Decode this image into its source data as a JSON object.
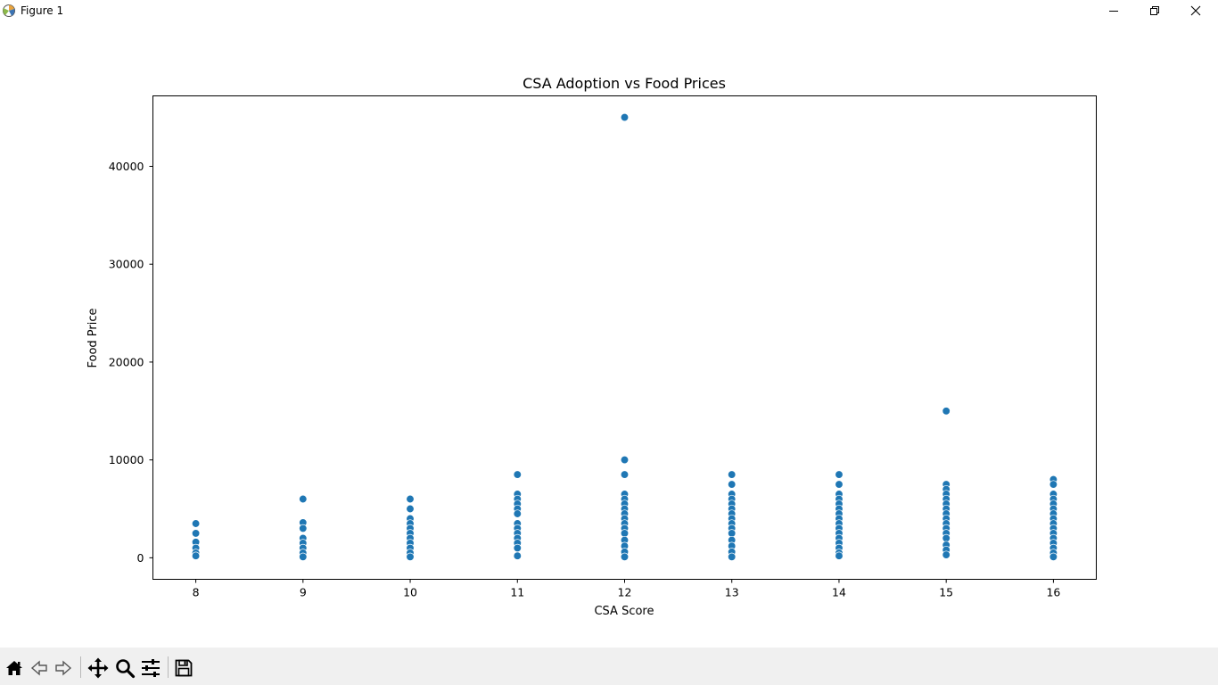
{
  "window": {
    "title": "Figure 1",
    "app_icon": "matplotlib-icon",
    "controls": [
      "minimize-icon",
      "maximize-icon",
      "close-icon"
    ]
  },
  "toolbar": {
    "buttons": [
      "home-icon",
      "back-icon",
      "forward-icon",
      "pan-icon",
      "zoom-icon",
      "configure-subplots-icon",
      "save-icon"
    ]
  },
  "chart_data": {
    "type": "scatter",
    "title": "CSA Adoption vs Food Prices",
    "xlabel": "CSA Score",
    "ylabel": "Food Price",
    "xlim": [
      7.6,
      16.4
    ],
    "ylim": [
      -2200,
      47200
    ],
    "xticks": [
      8,
      9,
      10,
      11,
      12,
      13,
      14,
      15,
      16
    ],
    "yticks": [
      0,
      10000,
      20000,
      30000,
      40000
    ],
    "ytick_labels": [
      "0",
      "10000",
      "20000",
      "30000",
      "40000"
    ],
    "grid": false,
    "marker_color": "#1f77b4",
    "points": [
      {
        "x": 8,
        "y": 3500
      },
      {
        "x": 8,
        "y": 2500
      },
      {
        "x": 8,
        "y": 1600
      },
      {
        "x": 8,
        "y": 1000
      },
      {
        "x": 8,
        "y": 500
      },
      {
        "x": 8,
        "y": 200
      },
      {
        "x": 9,
        "y": 6000
      },
      {
        "x": 9,
        "y": 3600
      },
      {
        "x": 9,
        "y": 3000
      },
      {
        "x": 9,
        "y": 2000
      },
      {
        "x": 9,
        "y": 1500
      },
      {
        "x": 9,
        "y": 1000
      },
      {
        "x": 9,
        "y": 500
      },
      {
        "x": 9,
        "y": 100
      },
      {
        "x": 10,
        "y": 6000
      },
      {
        "x": 10,
        "y": 5000
      },
      {
        "x": 10,
        "y": 4000
      },
      {
        "x": 10,
        "y": 3500
      },
      {
        "x": 10,
        "y": 3000
      },
      {
        "x": 10,
        "y": 2500
      },
      {
        "x": 10,
        "y": 2000
      },
      {
        "x": 10,
        "y": 1500
      },
      {
        "x": 10,
        "y": 1000
      },
      {
        "x": 10,
        "y": 500
      },
      {
        "x": 10,
        "y": 100
      },
      {
        "x": 11,
        "y": 8500
      },
      {
        "x": 11,
        "y": 6500
      },
      {
        "x": 11,
        "y": 6000
      },
      {
        "x": 11,
        "y": 5500
      },
      {
        "x": 11,
        "y": 5000
      },
      {
        "x": 11,
        "y": 4500
      },
      {
        "x": 11,
        "y": 3500
      },
      {
        "x": 11,
        "y": 3000
      },
      {
        "x": 11,
        "y": 2500
      },
      {
        "x": 11,
        "y": 2000
      },
      {
        "x": 11,
        "y": 1500
      },
      {
        "x": 11,
        "y": 1000
      },
      {
        "x": 11,
        "y": 200
      },
      {
        "x": 12,
        "y": 45000
      },
      {
        "x": 12,
        "y": 10000
      },
      {
        "x": 12,
        "y": 8500
      },
      {
        "x": 12,
        "y": 6500
      },
      {
        "x": 12,
        "y": 6000
      },
      {
        "x": 12,
        "y": 5500
      },
      {
        "x": 12,
        "y": 5000
      },
      {
        "x": 12,
        "y": 4500
      },
      {
        "x": 12,
        "y": 4000
      },
      {
        "x": 12,
        "y": 3500
      },
      {
        "x": 12,
        "y": 3000
      },
      {
        "x": 12,
        "y": 2500
      },
      {
        "x": 12,
        "y": 1800
      },
      {
        "x": 12,
        "y": 1200
      },
      {
        "x": 12,
        "y": 600
      },
      {
        "x": 12,
        "y": 100
      },
      {
        "x": 13,
        "y": 8500
      },
      {
        "x": 13,
        "y": 7500
      },
      {
        "x": 13,
        "y": 6500
      },
      {
        "x": 13,
        "y": 6000
      },
      {
        "x": 13,
        "y": 5500
      },
      {
        "x": 13,
        "y": 5000
      },
      {
        "x": 13,
        "y": 4500
      },
      {
        "x": 13,
        "y": 4000
      },
      {
        "x": 13,
        "y": 3500
      },
      {
        "x": 13,
        "y": 3000
      },
      {
        "x": 13,
        "y": 2500
      },
      {
        "x": 13,
        "y": 1800
      },
      {
        "x": 13,
        "y": 1200
      },
      {
        "x": 13,
        "y": 600
      },
      {
        "x": 13,
        "y": 100
      },
      {
        "x": 14,
        "y": 8500
      },
      {
        "x": 14,
        "y": 7500
      },
      {
        "x": 14,
        "y": 6500
      },
      {
        "x": 14,
        "y": 6000
      },
      {
        "x": 14,
        "y": 5500
      },
      {
        "x": 14,
        "y": 5000
      },
      {
        "x": 14,
        "y": 4500
      },
      {
        "x": 14,
        "y": 4000
      },
      {
        "x": 14,
        "y": 3500
      },
      {
        "x": 14,
        "y": 3000
      },
      {
        "x": 14,
        "y": 2500
      },
      {
        "x": 14,
        "y": 2000
      },
      {
        "x": 14,
        "y": 1500
      },
      {
        "x": 14,
        "y": 1000
      },
      {
        "x": 14,
        "y": 500
      },
      {
        "x": 14,
        "y": 200
      },
      {
        "x": 15,
        "y": 15000
      },
      {
        "x": 15,
        "y": 7500
      },
      {
        "x": 15,
        "y": 7000
      },
      {
        "x": 15,
        "y": 6500
      },
      {
        "x": 15,
        "y": 6000
      },
      {
        "x": 15,
        "y": 5500
      },
      {
        "x": 15,
        "y": 5000
      },
      {
        "x": 15,
        "y": 4500
      },
      {
        "x": 15,
        "y": 4000
      },
      {
        "x": 15,
        "y": 3500
      },
      {
        "x": 15,
        "y": 3000
      },
      {
        "x": 15,
        "y": 2500
      },
      {
        "x": 15,
        "y": 2000
      },
      {
        "x": 15,
        "y": 1300
      },
      {
        "x": 15,
        "y": 800
      },
      {
        "x": 15,
        "y": 300
      },
      {
        "x": 16,
        "y": 8000
      },
      {
        "x": 16,
        "y": 7500
      },
      {
        "x": 16,
        "y": 6500
      },
      {
        "x": 16,
        "y": 6000
      },
      {
        "x": 16,
        "y": 5500
      },
      {
        "x": 16,
        "y": 5000
      },
      {
        "x": 16,
        "y": 4500
      },
      {
        "x": 16,
        "y": 4000
      },
      {
        "x": 16,
        "y": 3500
      },
      {
        "x": 16,
        "y": 3000
      },
      {
        "x": 16,
        "y": 2500
      },
      {
        "x": 16,
        "y": 2000
      },
      {
        "x": 16,
        "y": 1500
      },
      {
        "x": 16,
        "y": 1000
      },
      {
        "x": 16,
        "y": 500
      },
      {
        "x": 16,
        "y": 100
      }
    ]
  }
}
